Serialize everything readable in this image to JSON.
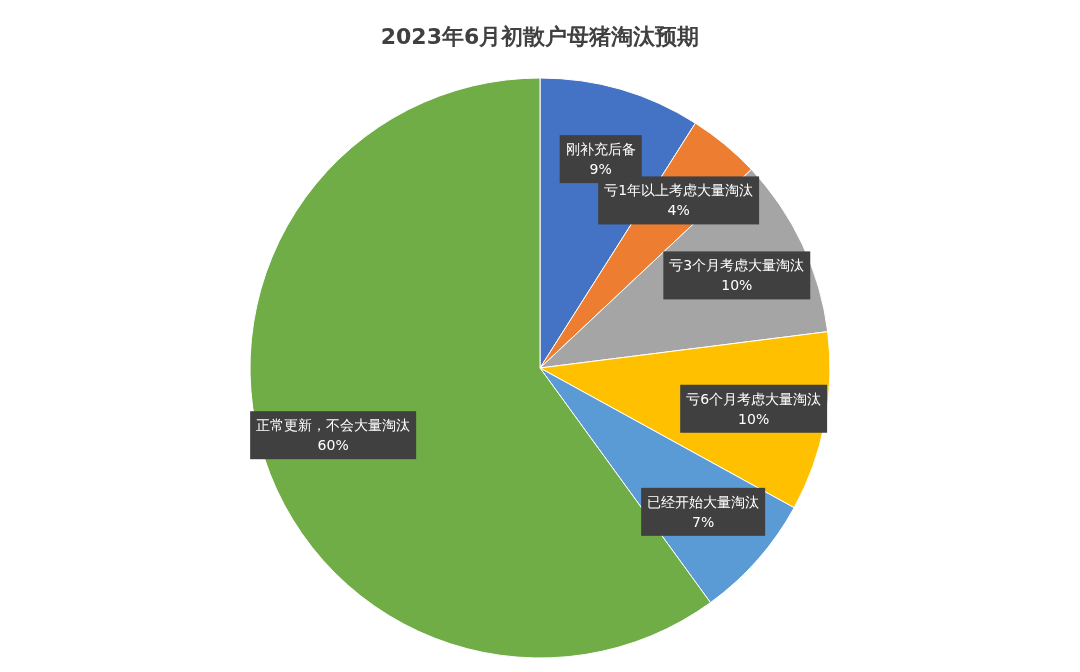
{
  "chart_data": {
    "type": "pie",
    "title": "2023年6月初散户母猪淘汰预期",
    "categories": [
      "刚补充后备",
      "亏1年以上考虑大量淘汰",
      "亏3个月考虑大量淘汰",
      "亏6个月考虑大量淘汰",
      "已经开始大量淘汰",
      "正常更新，不会大量淘汰"
    ],
    "values": [
      9,
      4,
      10,
      10,
      7,
      60
    ],
    "colors": [
      "#4472c4",
      "#ed7d31",
      "#a5a5a5",
      "#ffc000",
      "#5b9bd5",
      "#70ad47"
    ],
    "value_labels": [
      "9%",
      "4%",
      "10%",
      "10%",
      "7%",
      "60%"
    ]
  }
}
